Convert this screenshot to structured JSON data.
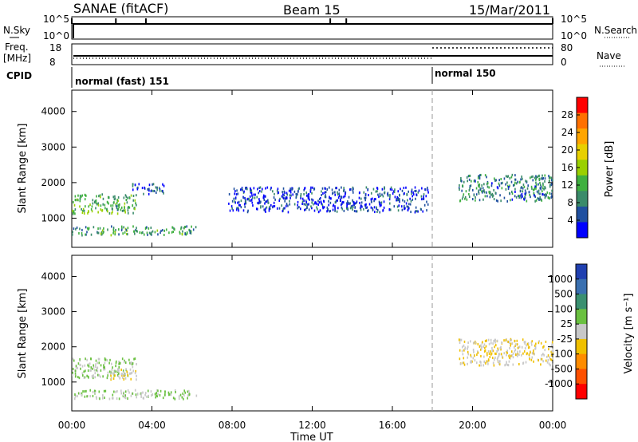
{
  "header": {
    "station": "SANAE (fitACF)",
    "beam": "Beam 15",
    "date": "15/Mar/2011"
  },
  "strip": {
    "nsky_label": "N.Sky",
    "nsky_ticks": [
      "10^5",
      "10^0"
    ],
    "nsearch_label": "N.Search",
    "nsearch_ticks": [
      "10^5",
      "10^0"
    ],
    "freq_label": "Freq.",
    "freq_unit": "[MHz]",
    "freq_ticks": [
      "18",
      "8"
    ],
    "nave_label": "Nave",
    "nave_ticks": [
      "80",
      "0"
    ],
    "cpid_label": "CPID",
    "cpid_modes": [
      {
        "label": "normal (fast) 151",
        "start_h": 0
      },
      {
        "label": "normal 150",
        "start_h": 18
      }
    ]
  },
  "panels": {
    "power": {
      "ylabel": "Slant Range [km]",
      "yticks": [
        "4000",
        "3000",
        "2000",
        "1000"
      ],
      "colorbar_label": "Power [dB]",
      "colorbar_ticks": [
        "28",
        "24",
        "20",
        "16",
        "12",
        "8",
        "4"
      ],
      "colorbar_colors": [
        "#ff0000",
        "#ff7000",
        "#ffa500",
        "#e8d000",
        "#9ad000",
        "#3fb03f",
        "#3a8b6a",
        "#2050a0",
        "#0000ff"
      ]
    },
    "velocity": {
      "ylabel": "Slant Range [km]",
      "yticks": [
        "4000",
        "3000",
        "2000",
        "1000"
      ],
      "colorbar_label": "Velocity [m s⁻¹]",
      "colorbar_ticks": [
        "1000",
        "500",
        "100",
        "25",
        "-25",
        "-100",
        "-500",
        "-1000"
      ],
      "colorbar_colors": [
        "#2040b0",
        "#3a70b0",
        "#3a9070",
        "#6ac040",
        "#c8c8c8",
        "#f0c000",
        "#ff8c00",
        "#ff5000",
        "#ff0000"
      ]
    }
  },
  "xaxis": {
    "ticks": [
      "00:00",
      "04:00",
      "08:00",
      "12:00",
      "16:00",
      "20:00",
      "00:00"
    ],
    "label": "Time UT"
  },
  "chart_data": [
    {
      "type": "heatmap",
      "name": "power",
      "xlim_hours": [
        0,
        24
      ],
      "ylim_km": [
        180,
        4600
      ],
      "clim_db": [
        0,
        32
      ],
      "features": [
        {
          "t": [
            0,
            6.2
          ],
          "range_km": [
            550,
            800
          ],
          "value_db": 10
        },
        {
          "t": [
            0,
            3.2
          ],
          "range_km": [
            1150,
            1700
          ],
          "value_db": 12
        },
        {
          "t": [
            3.0,
            4.6
          ],
          "range_km": [
            1700,
            2000
          ],
          "value_db": 6
        },
        {
          "t": [
            19.3,
            24
          ],
          "range_km": [
            1500,
            2250
          ],
          "value_db": 8
        },
        {
          "t": [
            7.8,
            17.8
          ],
          "range_km": [
            1200,
            1900
          ],
          "value_db": 4
        }
      ]
    },
    {
      "type": "heatmap",
      "name": "velocity",
      "xlim_hours": [
        0,
        24
      ],
      "ylim_km": [
        180,
        4600
      ],
      "clim_ms": [
        -1000,
        1000
      ],
      "features": [
        {
          "t": [
            0,
            6.2
          ],
          "range_km": [
            550,
            800
          ],
          "value_ms": 100
        },
        {
          "t": [
            0,
            3.2
          ],
          "range_km": [
            1150,
            1700
          ],
          "value_ms": 100
        },
        {
          "t": [
            1.8,
            3.2
          ],
          "range_km": [
            1100,
            1400
          ],
          "value_ms": -100
        },
        {
          "t": [
            19.3,
            24
          ],
          "range_km": [
            1500,
            2250
          ],
          "value_ms": -100
        }
      ]
    }
  ]
}
